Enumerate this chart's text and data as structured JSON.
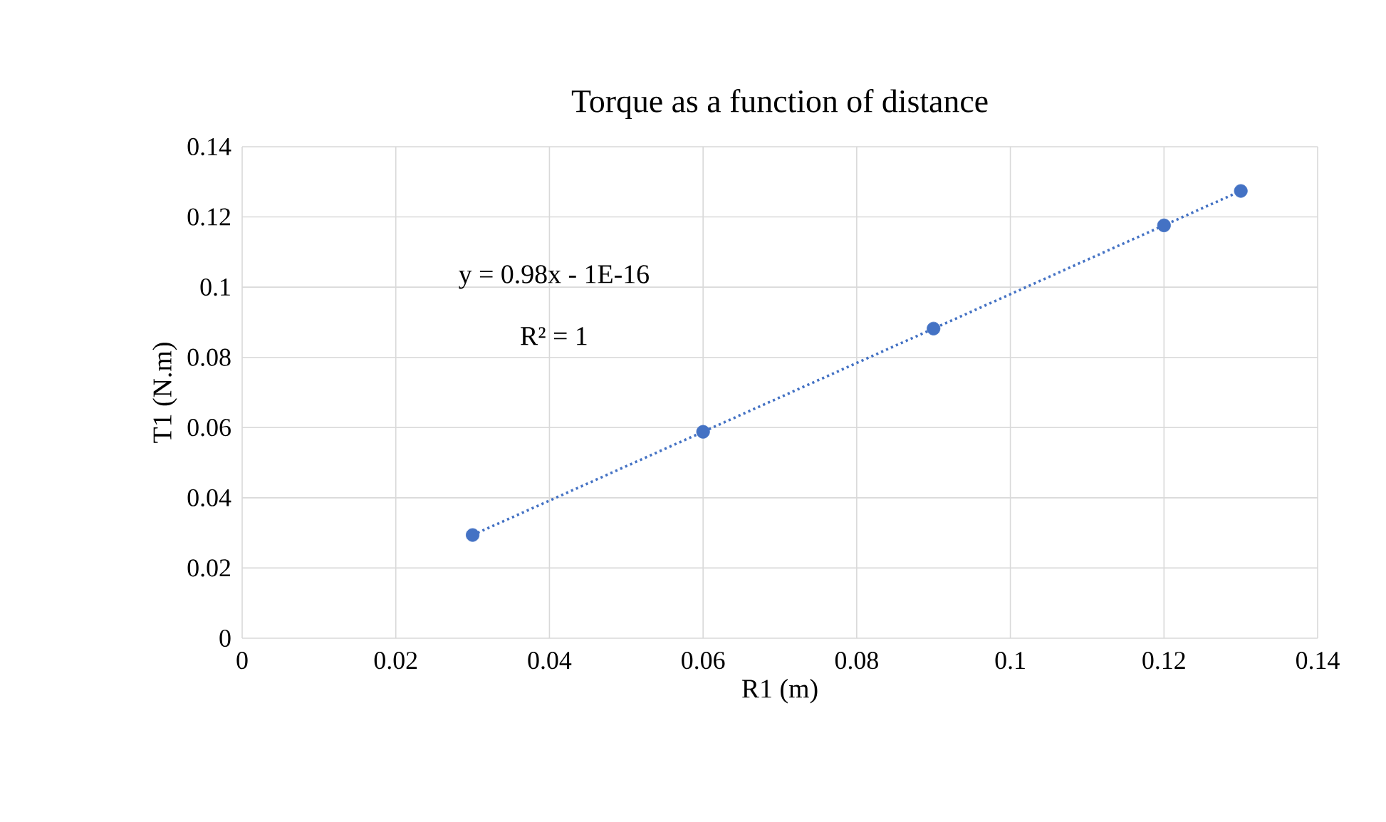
{
  "chart_data": {
    "type": "scatter",
    "title": "Torque as a function of distance",
    "xlabel": "R1 (m)",
    "ylabel": "T1 (N.m)",
    "x": [
      0.03,
      0.06,
      0.09,
      0.12,
      0.13
    ],
    "series": [
      {
        "color": "#4472c4",
        "values": [
          0.0294,
          0.0588,
          0.0882,
          0.1176,
          0.1274
        ],
        "marker": "circle"
      },
      {
        "type": "line",
        "color": "#4472c4",
        "x": [
          0.03,
          0.13
        ],
        "values": [
          0.0294,
          0.1274
        ],
        "line_style": "dotted",
        "marker": "none"
      }
    ],
    "annotations": [
      "y = 0.98x - 1E-16",
      "R² = 1"
    ],
    "xlim": [
      0,
      0.14
    ],
    "xticks": [
      0,
      0.02,
      0.04,
      0.06,
      0.08,
      0.1,
      0.12,
      0.14
    ],
    "ylim": [
      0,
      0.14
    ],
    "yticks": [
      0,
      0.02,
      0.04,
      0.06,
      0.08,
      0.1,
      0.12,
      0.14
    ],
    "grid": true
  }
}
